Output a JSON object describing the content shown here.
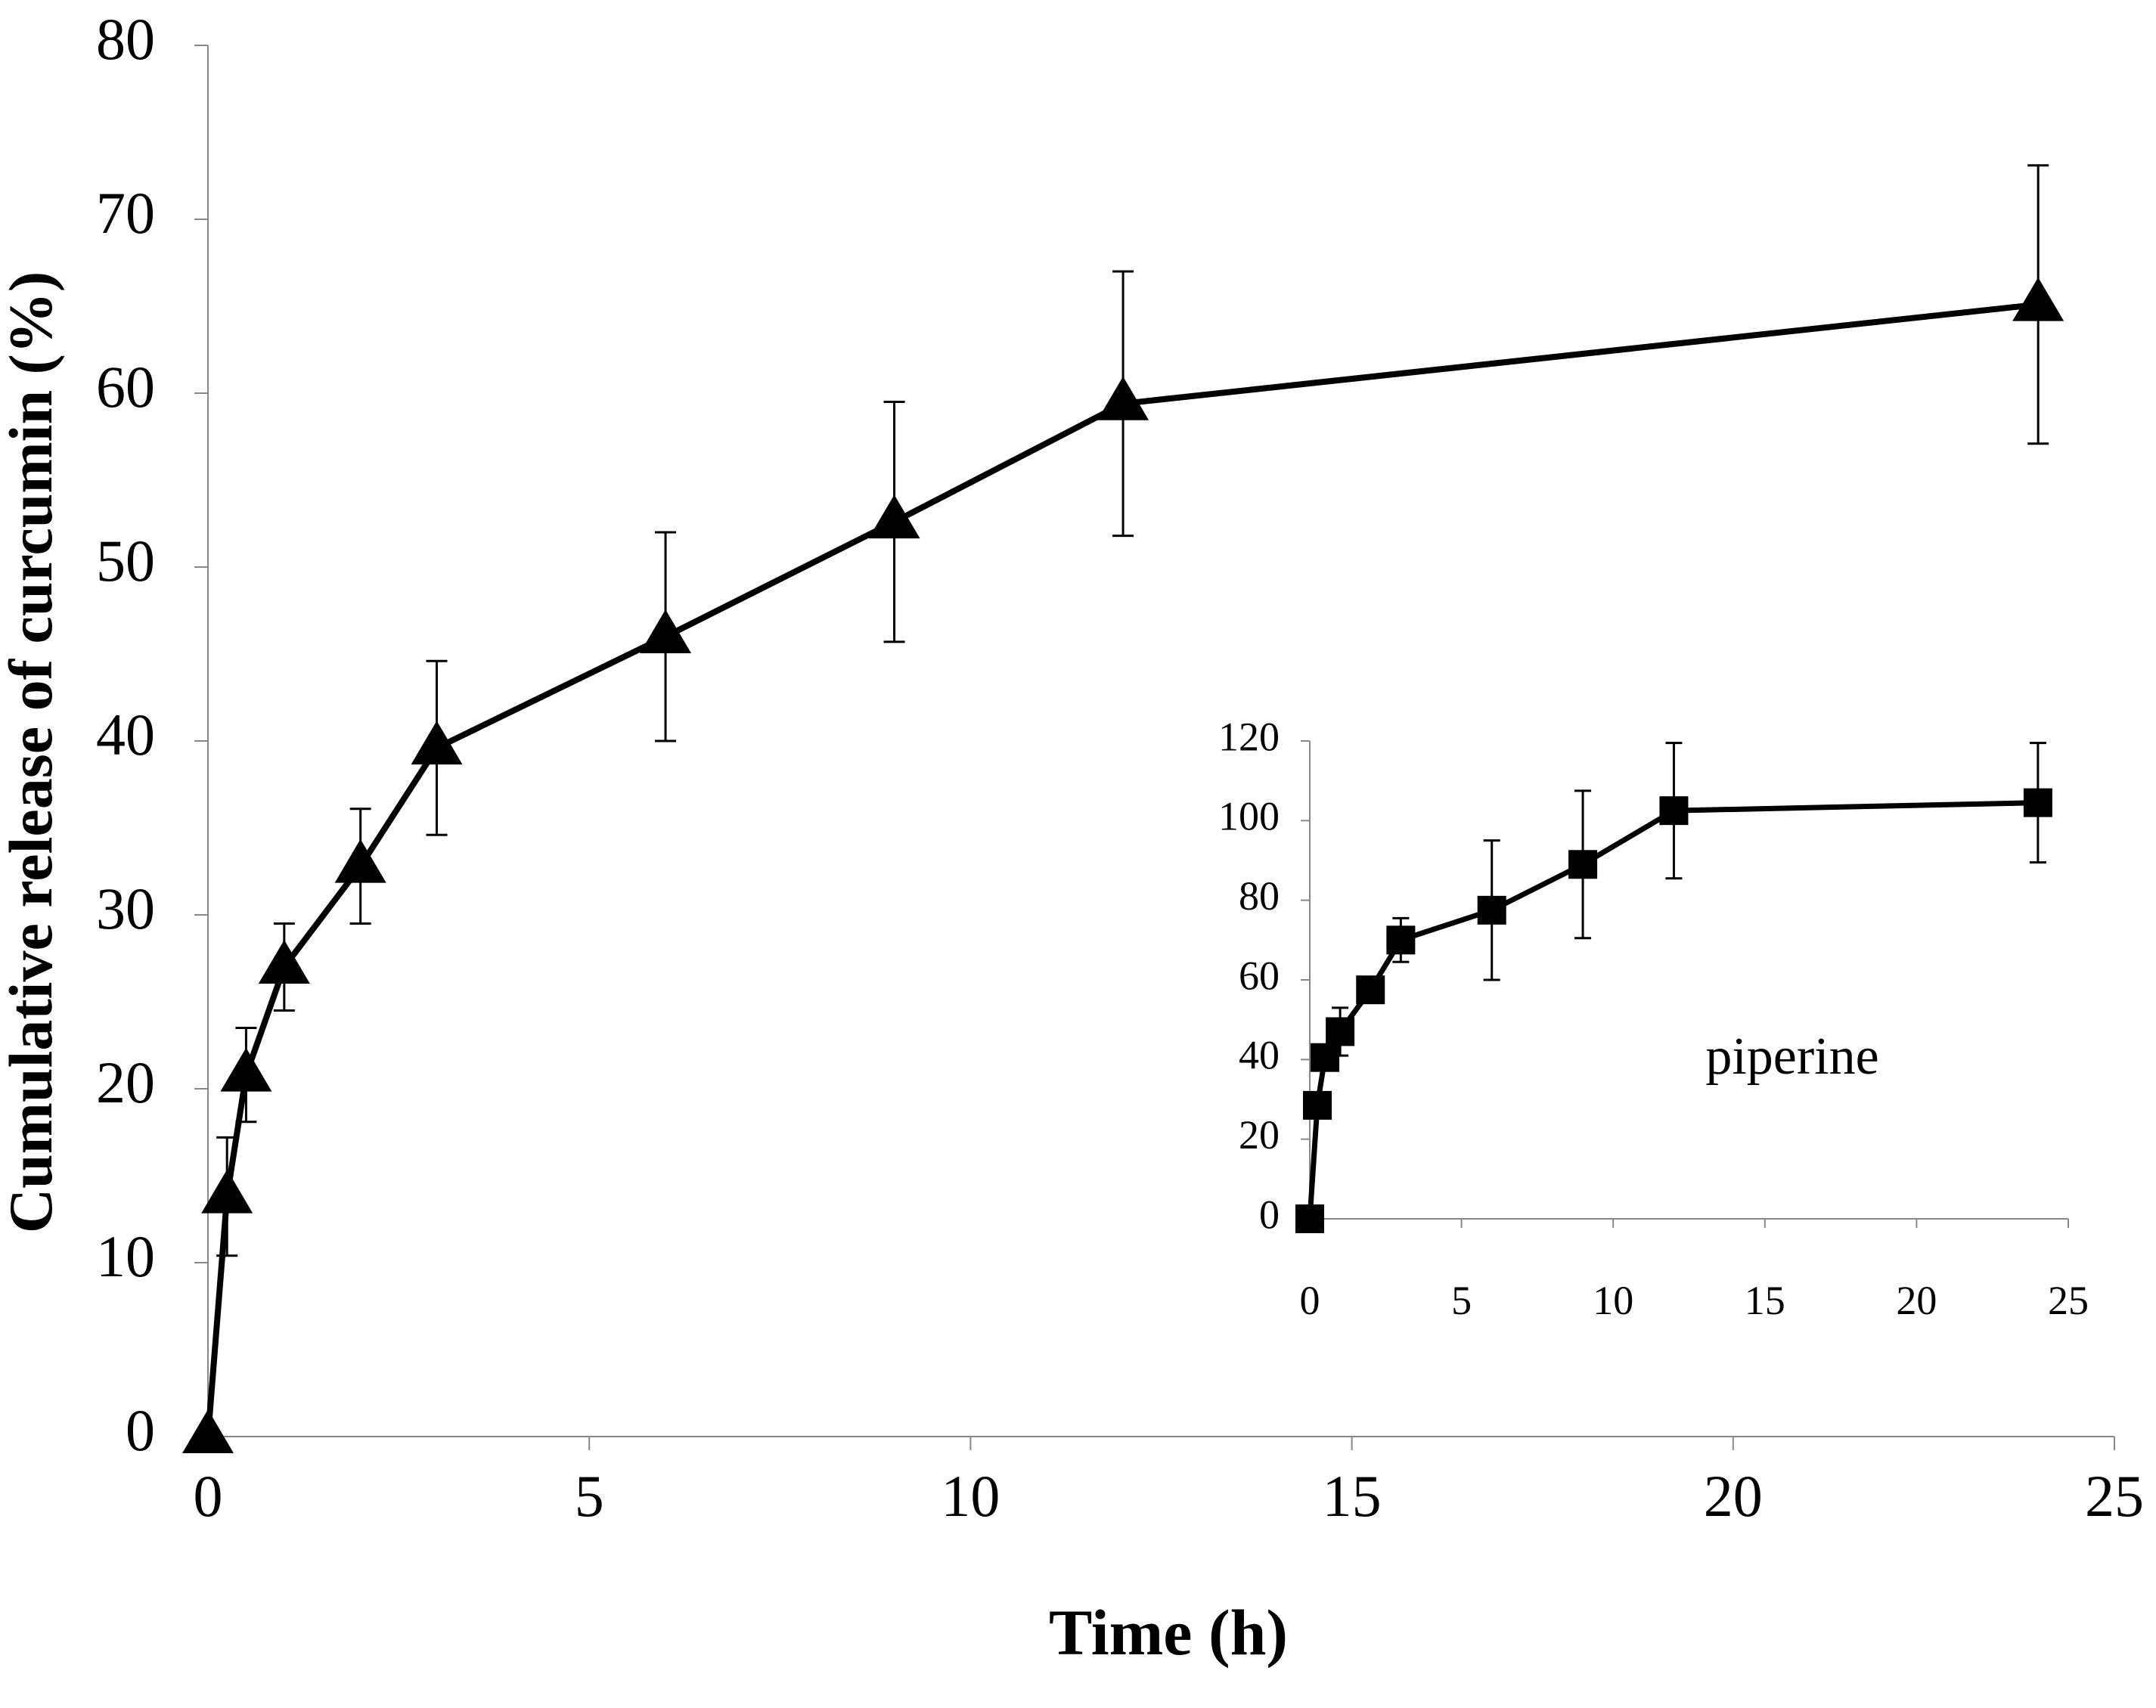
{
  "chart_data": [
    {
      "type": "line",
      "role": "main",
      "title": "",
      "xlabel": "Time (h)",
      "ylabel": "Cumulative release of curcumin (%)",
      "xlim": [
        0,
        25
      ],
      "ylim": [
        0,
        80
      ],
      "xticks": [
        0,
        5,
        10,
        15,
        20,
        25
      ],
      "yticks": [
        0,
        10,
        20,
        30,
        40,
        50,
        60,
        70,
        80
      ],
      "grid": false,
      "series": [
        {
          "name": "curcumin",
          "marker": "triangle",
          "color": "#000000",
          "x": [
            0,
            0.25,
            0.5,
            1,
            2,
            3,
            6,
            9,
            12,
            24
          ],
          "y": [
            0,
            13.8,
            20.8,
            27,
            32.8,
            39.6,
            46,
            52.6,
            59.4,
            65.1
          ],
          "error": [
            0,
            3.4,
            2.7,
            2.5,
            3.3,
            5,
            6,
            6.9,
            7.6,
            8
          ]
        }
      ]
    },
    {
      "type": "line",
      "role": "inset",
      "title": "",
      "annotation": "piperine",
      "xlabel": "",
      "ylabel": "",
      "xlim": [
        0,
        25
      ],
      "ylim": [
        0,
        120
      ],
      "xticks": [
        0,
        5,
        10,
        15,
        20,
        25
      ],
      "yticks": [
        0,
        20,
        40,
        60,
        80,
        100,
        120
      ],
      "grid": false,
      "series": [
        {
          "name": "piperine",
          "marker": "square",
          "color": "#000000",
          "x": [
            0,
            0.25,
            0.5,
            1,
            2,
            3,
            6,
            9,
            12,
            24
          ],
          "y": [
            0,
            28.5,
            40.5,
            47,
            57.5,
            70,
            77.5,
            89,
            102.5,
            104.5
          ],
          "error": [
            0,
            0,
            0,
            6,
            0,
            5.5,
            17.5,
            18.5,
            17,
            15
          ]
        }
      ]
    }
  ]
}
